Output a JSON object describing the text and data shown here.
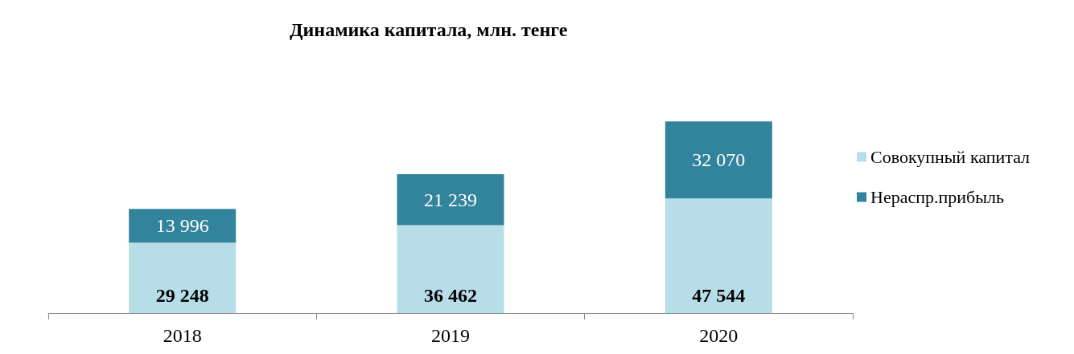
{
  "chart_data": {
    "type": "bar",
    "title": "Динамика капитала, млн. тенге",
    "categories": [
      "2018",
      "2019",
      "2020"
    ],
    "stacked": true,
    "legend": "right",
    "series": [
      {
        "name": "Совокупный капитал",
        "color": "#b7dde8",
        "values": [
          29248,
          36462,
          47544
        ],
        "value_labels": [
          "29 248",
          "36 462",
          "47 544"
        ]
      },
      {
        "name": "Нераспр.прибыль",
        "color": "#31849b",
        "values": [
          13996,
          21239,
          32070
        ],
        "value_labels": [
          "13 996",
          "21 239",
          "32 070"
        ]
      }
    ]
  }
}
